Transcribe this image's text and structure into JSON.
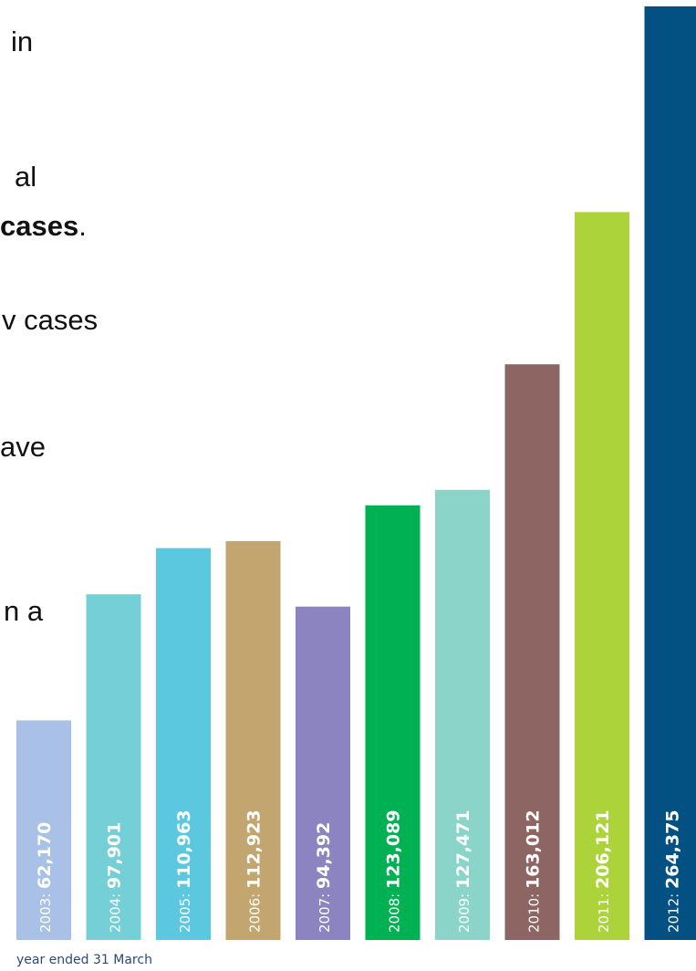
{
  "background_text": [
    {
      "text": "in"
    },
    {
      "text": "al"
    },
    {
      "text": "cases",
      "bold": true,
      "suffix": "."
    },
    {
      "text": "v cases"
    },
    {
      "text": "ave"
    },
    {
      "text": "n a"
    }
  ],
  "chart_data": {
    "type": "bar",
    "orientation": "vertical",
    "categories": [
      "2003",
      "2004",
      "2005",
      "2006",
      "2007",
      "2008",
      "2009",
      "2010",
      "2011",
      "2012"
    ],
    "values": [
      62170,
      97901,
      110963,
      112923,
      94392,
      123089,
      127471,
      163012,
      206121,
      264375
    ],
    "value_labels": [
      "62,170",
      "97,901",
      "110,963",
      "112,923",
      "94,392",
      "123,089",
      "127,471",
      "163,012",
      "206,121",
      "264,375"
    ],
    "colors": [
      "#a9c1e6",
      "#75cfd6",
      "#5bc8df",
      "#c3a66f",
      "#8b84c1",
      "#00b153",
      "#8ad4c9",
      "#8d6664",
      "#acd43a",
      "#035082"
    ],
    "xlabel": "year ended 31 March",
    "ylabel": "",
    "title": "",
    "ylim": [
      0,
      275000
    ],
    "grid": false,
    "legend": "none"
  }
}
